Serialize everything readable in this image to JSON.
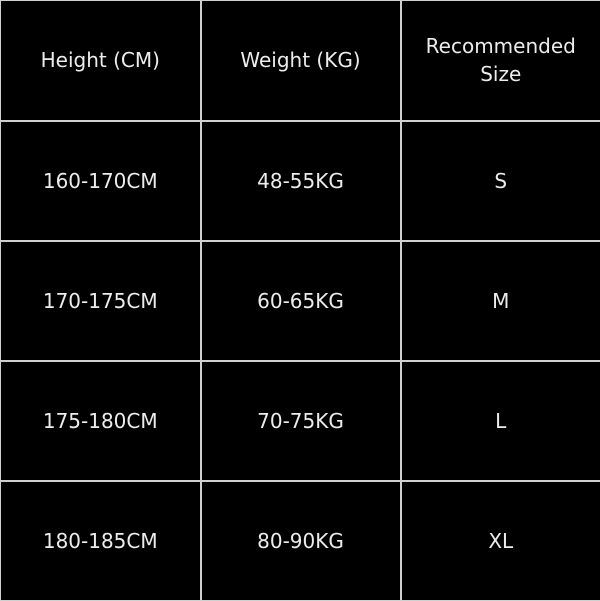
{
  "table": {
    "headers": [
      "Height (CM)",
      "Weight (KG)",
      "Recommended Size"
    ],
    "rows": [
      [
        "160-170CM",
        "48-55KG",
        "S"
      ],
      [
        "170-175CM",
        "60-65KG",
        "M"
      ],
      [
        "175-180CM",
        "70-75KG",
        "L"
      ],
      [
        "180-185CM",
        "80-90KG",
        "XL"
      ]
    ]
  }
}
